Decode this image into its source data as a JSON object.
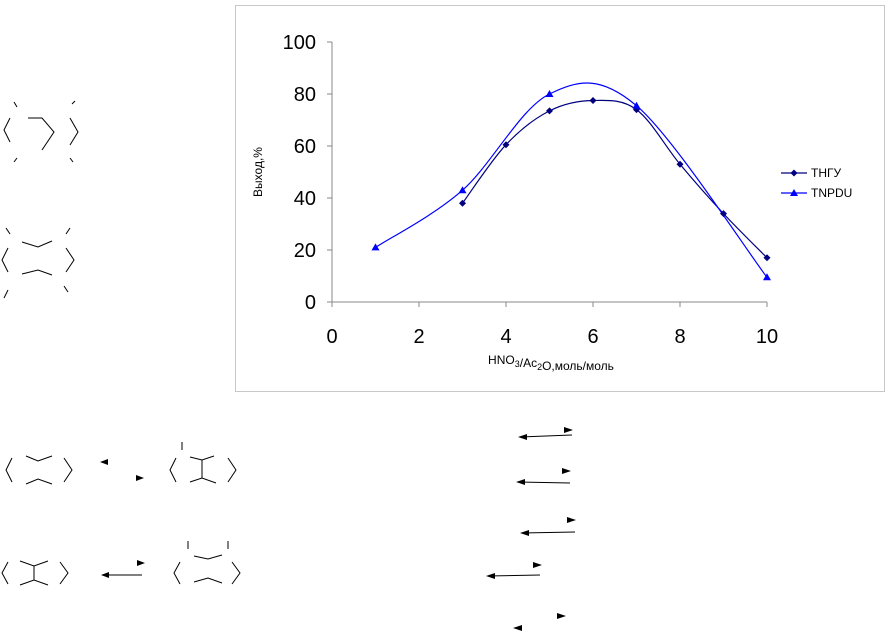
{
  "chart_data": {
    "type": "line",
    "xlabel": "HNO3/Ac2O,моль/моль",
    "ylabel": "Выход,%",
    "xlim": [
      0,
      10
    ],
    "ylim": [
      0,
      100
    ],
    "xticks": [
      0,
      2,
      4,
      6,
      8,
      10
    ],
    "yticks": [
      0,
      20,
      40,
      60,
      80,
      100
    ],
    "grid": false,
    "legend": "right",
    "series": [
      {
        "name": "ТНГУ",
        "color": "#00007f",
        "marker": "diamond",
        "x": [
          3,
          4,
          5,
          6,
          7,
          8,
          9,
          10
        ],
        "y": [
          38,
          60.5,
          73.5,
          77.5,
          74,
          53,
          34,
          17
        ]
      },
      {
        "name": "TNPDU",
        "color": "#0000ff",
        "marker": "triangle",
        "x": [
          1,
          3,
          5,
          7,
          10
        ],
        "y": [
          21,
          43,
          80,
          75.5,
          9.5
        ]
      }
    ]
  }
}
